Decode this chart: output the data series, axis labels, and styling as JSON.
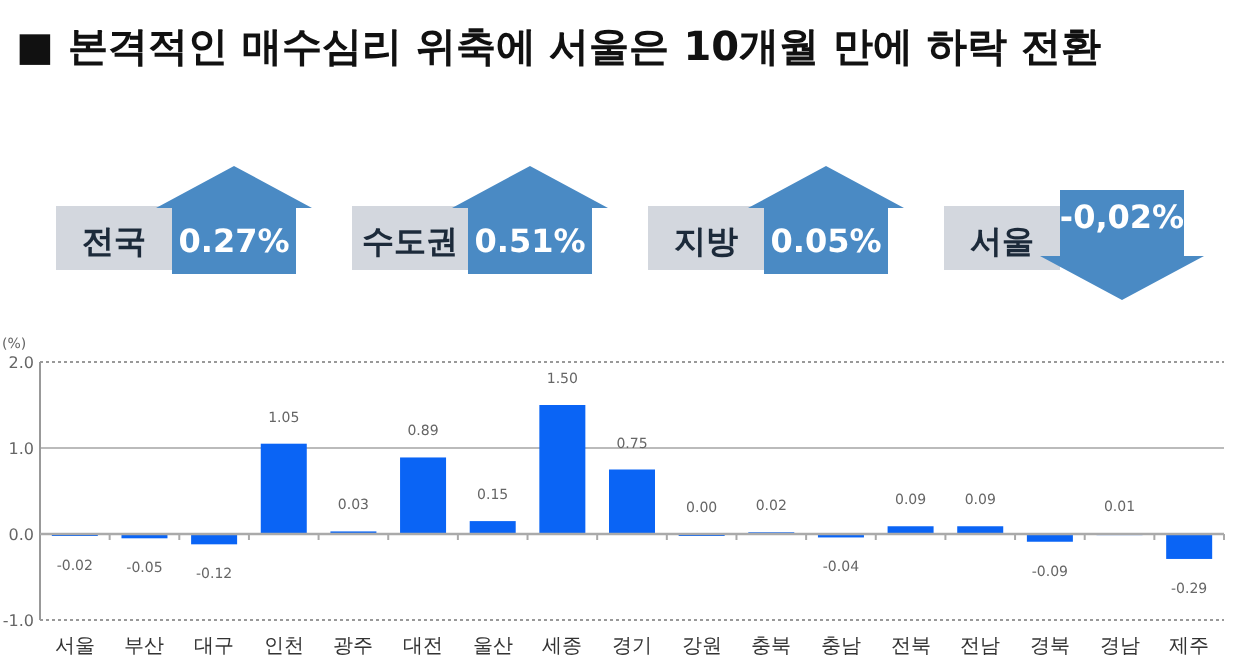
{
  "chart_data": [
    {
      "type": "other",
      "title": "■ 본격적인 매수심리 위축에 서울은 10개월 만에 하락 전환",
      "categories": [
        "전국",
        "수도권",
        "지방",
        "서울"
      ],
      "values": [
        0.27,
        0.51,
        0.05,
        -0.02
      ],
      "value_labels": [
        "0.27%",
        "0.51%",
        "0.05%",
        "-0,02%"
      ]
    },
    {
      "type": "bar",
      "ylabel": "(%)",
      "categories": [
        "서울",
        "부산",
        "대구",
        "인천",
        "광주",
        "대전",
        "울산",
        "세종",
        "경기",
        "강원",
        "충북",
        "충남",
        "전북",
        "전남",
        "경북",
        "경남",
        "제주"
      ],
      "values": [
        -0.02,
        -0.05,
        -0.12,
        1.05,
        0.03,
        0.89,
        0.15,
        1.5,
        0.75,
        0.0,
        0.02,
        -0.04,
        0.09,
        0.09,
        -0.09,
        0.01,
        -0.29
      ],
      "color": "#0a64f5",
      "ylim": [
        -1.0,
        2.0
      ],
      "yticks": [
        {
          "value": -1.0,
          "label": "-1.0"
        },
        {
          "value": 0,
          "label": "0.0"
        },
        {
          "value": 1.0,
          "label": "1.0"
        },
        {
          "value": 2.0,
          "label": "2.0"
        }
      ],
      "ref_lines": [
        {
          "axis": "y",
          "value": 1.0,
          "color": "#bbbbbb",
          "line_style": "solid"
        }
      ],
      "value_labels": [
        "-0.02",
        "-0.05",
        "-0.12",
        "1.05",
        "0.03",
        "0.89",
        "0.15",
        "1.50",
        "0.75",
        "0.00",
        "0.02",
        "-0.04",
        "0.09",
        "0.09",
        "-0.09",
        "0.01",
        "-0.29"
      ]
    }
  ]
}
